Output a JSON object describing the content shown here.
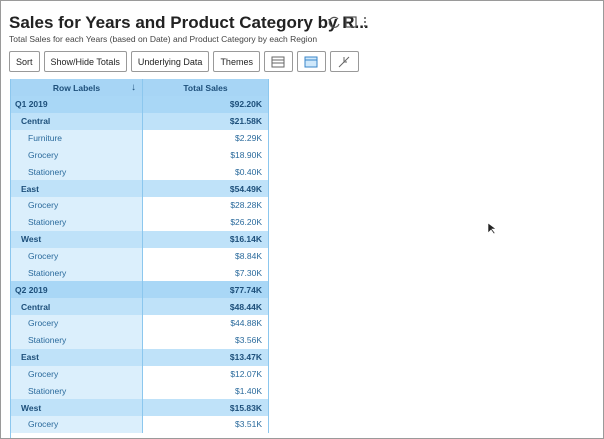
{
  "header": {
    "title": "Sales for Years and Product Category by R...",
    "subtitle": "Total Sales for each Years (based on Date) and Product Category by each Region"
  },
  "toolbar": {
    "buttons": [
      "Sort",
      "Show/Hide Totals",
      "Underlying Data",
      "Themes"
    ]
  },
  "table": {
    "headers": [
      "Row Labels",
      "Total Sales"
    ],
    "groups": [
      {
        "label": "Q1 2019",
        "value": "$92.20K",
        "regions": [
          {
            "label": "Central",
            "value": "$21.58K",
            "items": [
              {
                "label": "Furniture",
                "value": "$2.29K"
              },
              {
                "label": "Grocery",
                "value": "$18.90K"
              },
              {
                "label": "Stationery",
                "value": "$0.40K"
              }
            ]
          },
          {
            "label": "East",
            "value": "$54.49K",
            "items": [
              {
                "label": "Grocery",
                "value": "$28.28K"
              },
              {
                "label": "Stationery",
                "value": "$26.20K"
              }
            ]
          },
          {
            "label": "West",
            "value": "$16.14K",
            "items": [
              {
                "label": "Grocery",
                "value": "$8.84K"
              },
              {
                "label": "Stationery",
                "value": "$7.30K"
              }
            ]
          }
        ]
      },
      {
        "label": "Q2 2019",
        "value": "$77.74K",
        "regions": [
          {
            "label": "Central",
            "value": "$48.44K",
            "items": [
              {
                "label": "Grocery",
                "value": "$44.88K"
              },
              {
                "label": "Stationery",
                "value": "$3.56K"
              }
            ]
          },
          {
            "label": "East",
            "value": "$13.47K",
            "items": [
              {
                "label": "Grocery",
                "value": "$12.07K"
              },
              {
                "label": "Stationery",
                "value": "$1.40K"
              }
            ]
          },
          {
            "label": "West",
            "value": "$15.83K",
            "items": [
              {
                "label": "Grocery",
                "value": "$3.51K"
              }
            ]
          }
        ]
      }
    ]
  }
}
